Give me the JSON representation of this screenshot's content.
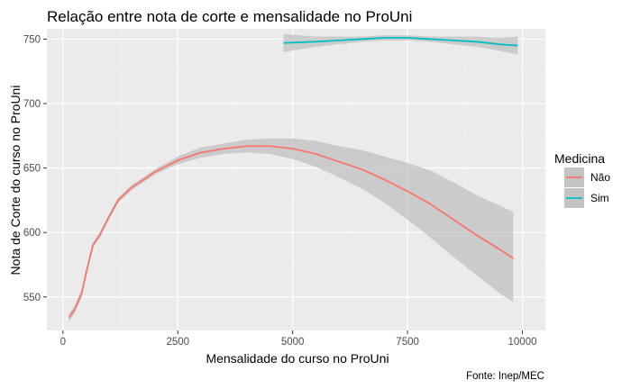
{
  "chart_data": {
    "type": "line",
    "title": "Relação entre nota de corte e mensalidade no ProUni",
    "xlabel": "Mensalidade do curso no ProUni",
    "ylabel": "Nota de Corte do curso no ProUni",
    "caption": "Fonte: Inep/MEC",
    "xlim": [
      -350,
      10500
    ],
    "ylim": [
      524,
      758
    ],
    "x_ticks": [
      0,
      2500,
      5000,
      7500,
      10000
    ],
    "x_tick_labels": [
      "0",
      "2500",
      "5000",
      "7500",
      "10000"
    ],
    "y_ticks": [
      550,
      600,
      650,
      700,
      750
    ],
    "y_tick_labels": [
      "550",
      "600",
      "650",
      "700",
      "750"
    ],
    "grid": true,
    "legend": {
      "title": "Medicina",
      "placement": "right"
    },
    "series": [
      {
        "name": "Não",
        "color": "#F8766D",
        "points": [
          [
            130,
            534
          ],
          [
            250,
            540
          ],
          [
            400,
            552
          ],
          [
            500,
            568
          ],
          [
            650,
            590
          ],
          [
            800,
            598
          ],
          [
            1000,
            612
          ],
          [
            1200,
            625
          ],
          [
            1500,
            635
          ],
          [
            1800,
            642
          ],
          [
            2000,
            647
          ],
          [
            2500,
            656
          ],
          [
            3000,
            662
          ],
          [
            3500,
            665
          ],
          [
            4000,
            667
          ],
          [
            4500,
            667
          ],
          [
            5000,
            665
          ],
          [
            5500,
            661
          ],
          [
            6000,
            655
          ],
          [
            6500,
            649
          ],
          [
            7000,
            641
          ],
          [
            7500,
            632
          ],
          [
            8000,
            622
          ],
          [
            8500,
            610
          ],
          [
            9000,
            598
          ],
          [
            9500,
            587
          ],
          [
            9800,
            580
          ]
        ],
        "ribbon": [
          [
            130,
            531,
            537
          ],
          [
            250,
            537,
            543
          ],
          [
            400,
            549,
            555
          ],
          [
            500,
            565,
            571
          ],
          [
            650,
            588,
            592
          ],
          [
            800,
            596,
            600
          ],
          [
            1000,
            610,
            614
          ],
          [
            1200,
            623,
            627
          ],
          [
            1500,
            633,
            637
          ],
          [
            1800,
            640,
            644
          ],
          [
            2000,
            645,
            649
          ],
          [
            2500,
            653,
            659
          ],
          [
            3000,
            658,
            666
          ],
          [
            3500,
            661,
            669
          ],
          [
            4000,
            662,
            672
          ],
          [
            4500,
            661,
            673
          ],
          [
            5000,
            657,
            673
          ],
          [
            5500,
            651,
            671
          ],
          [
            6000,
            643,
            667
          ],
          [
            6500,
            634,
            664
          ],
          [
            7000,
            623,
            659
          ],
          [
            7500,
            610,
            654
          ],
          [
            8000,
            596,
            648
          ],
          [
            8500,
            581,
            639
          ],
          [
            9000,
            567,
            629
          ],
          [
            9500,
            553,
            621
          ],
          [
            9800,
            546,
            616
          ]
        ]
      },
      {
        "name": "Sim",
        "color": "#00BFC4",
        "points": [
          [
            4800,
            747
          ],
          [
            5500,
            748
          ],
          [
            6000,
            749
          ],
          [
            6500,
            750
          ],
          [
            7000,
            751
          ],
          [
            7500,
            751
          ],
          [
            8000,
            750
          ],
          [
            8500,
            749
          ],
          [
            9000,
            748
          ],
          [
            9500,
            746
          ],
          [
            9900,
            745
          ]
        ],
        "ribbon": [
          [
            4800,
            740,
            754
          ],
          [
            5500,
            744,
            752
          ],
          [
            6000,
            746,
            752
          ],
          [
            6500,
            748,
            752
          ],
          [
            7000,
            749,
            753
          ],
          [
            7500,
            749,
            753
          ],
          [
            8000,
            748,
            752
          ],
          [
            8500,
            746,
            752
          ],
          [
            9000,
            744,
            752
          ],
          [
            9500,
            741,
            751
          ],
          [
            9900,
            738,
            752
          ]
        ]
      }
    ]
  }
}
